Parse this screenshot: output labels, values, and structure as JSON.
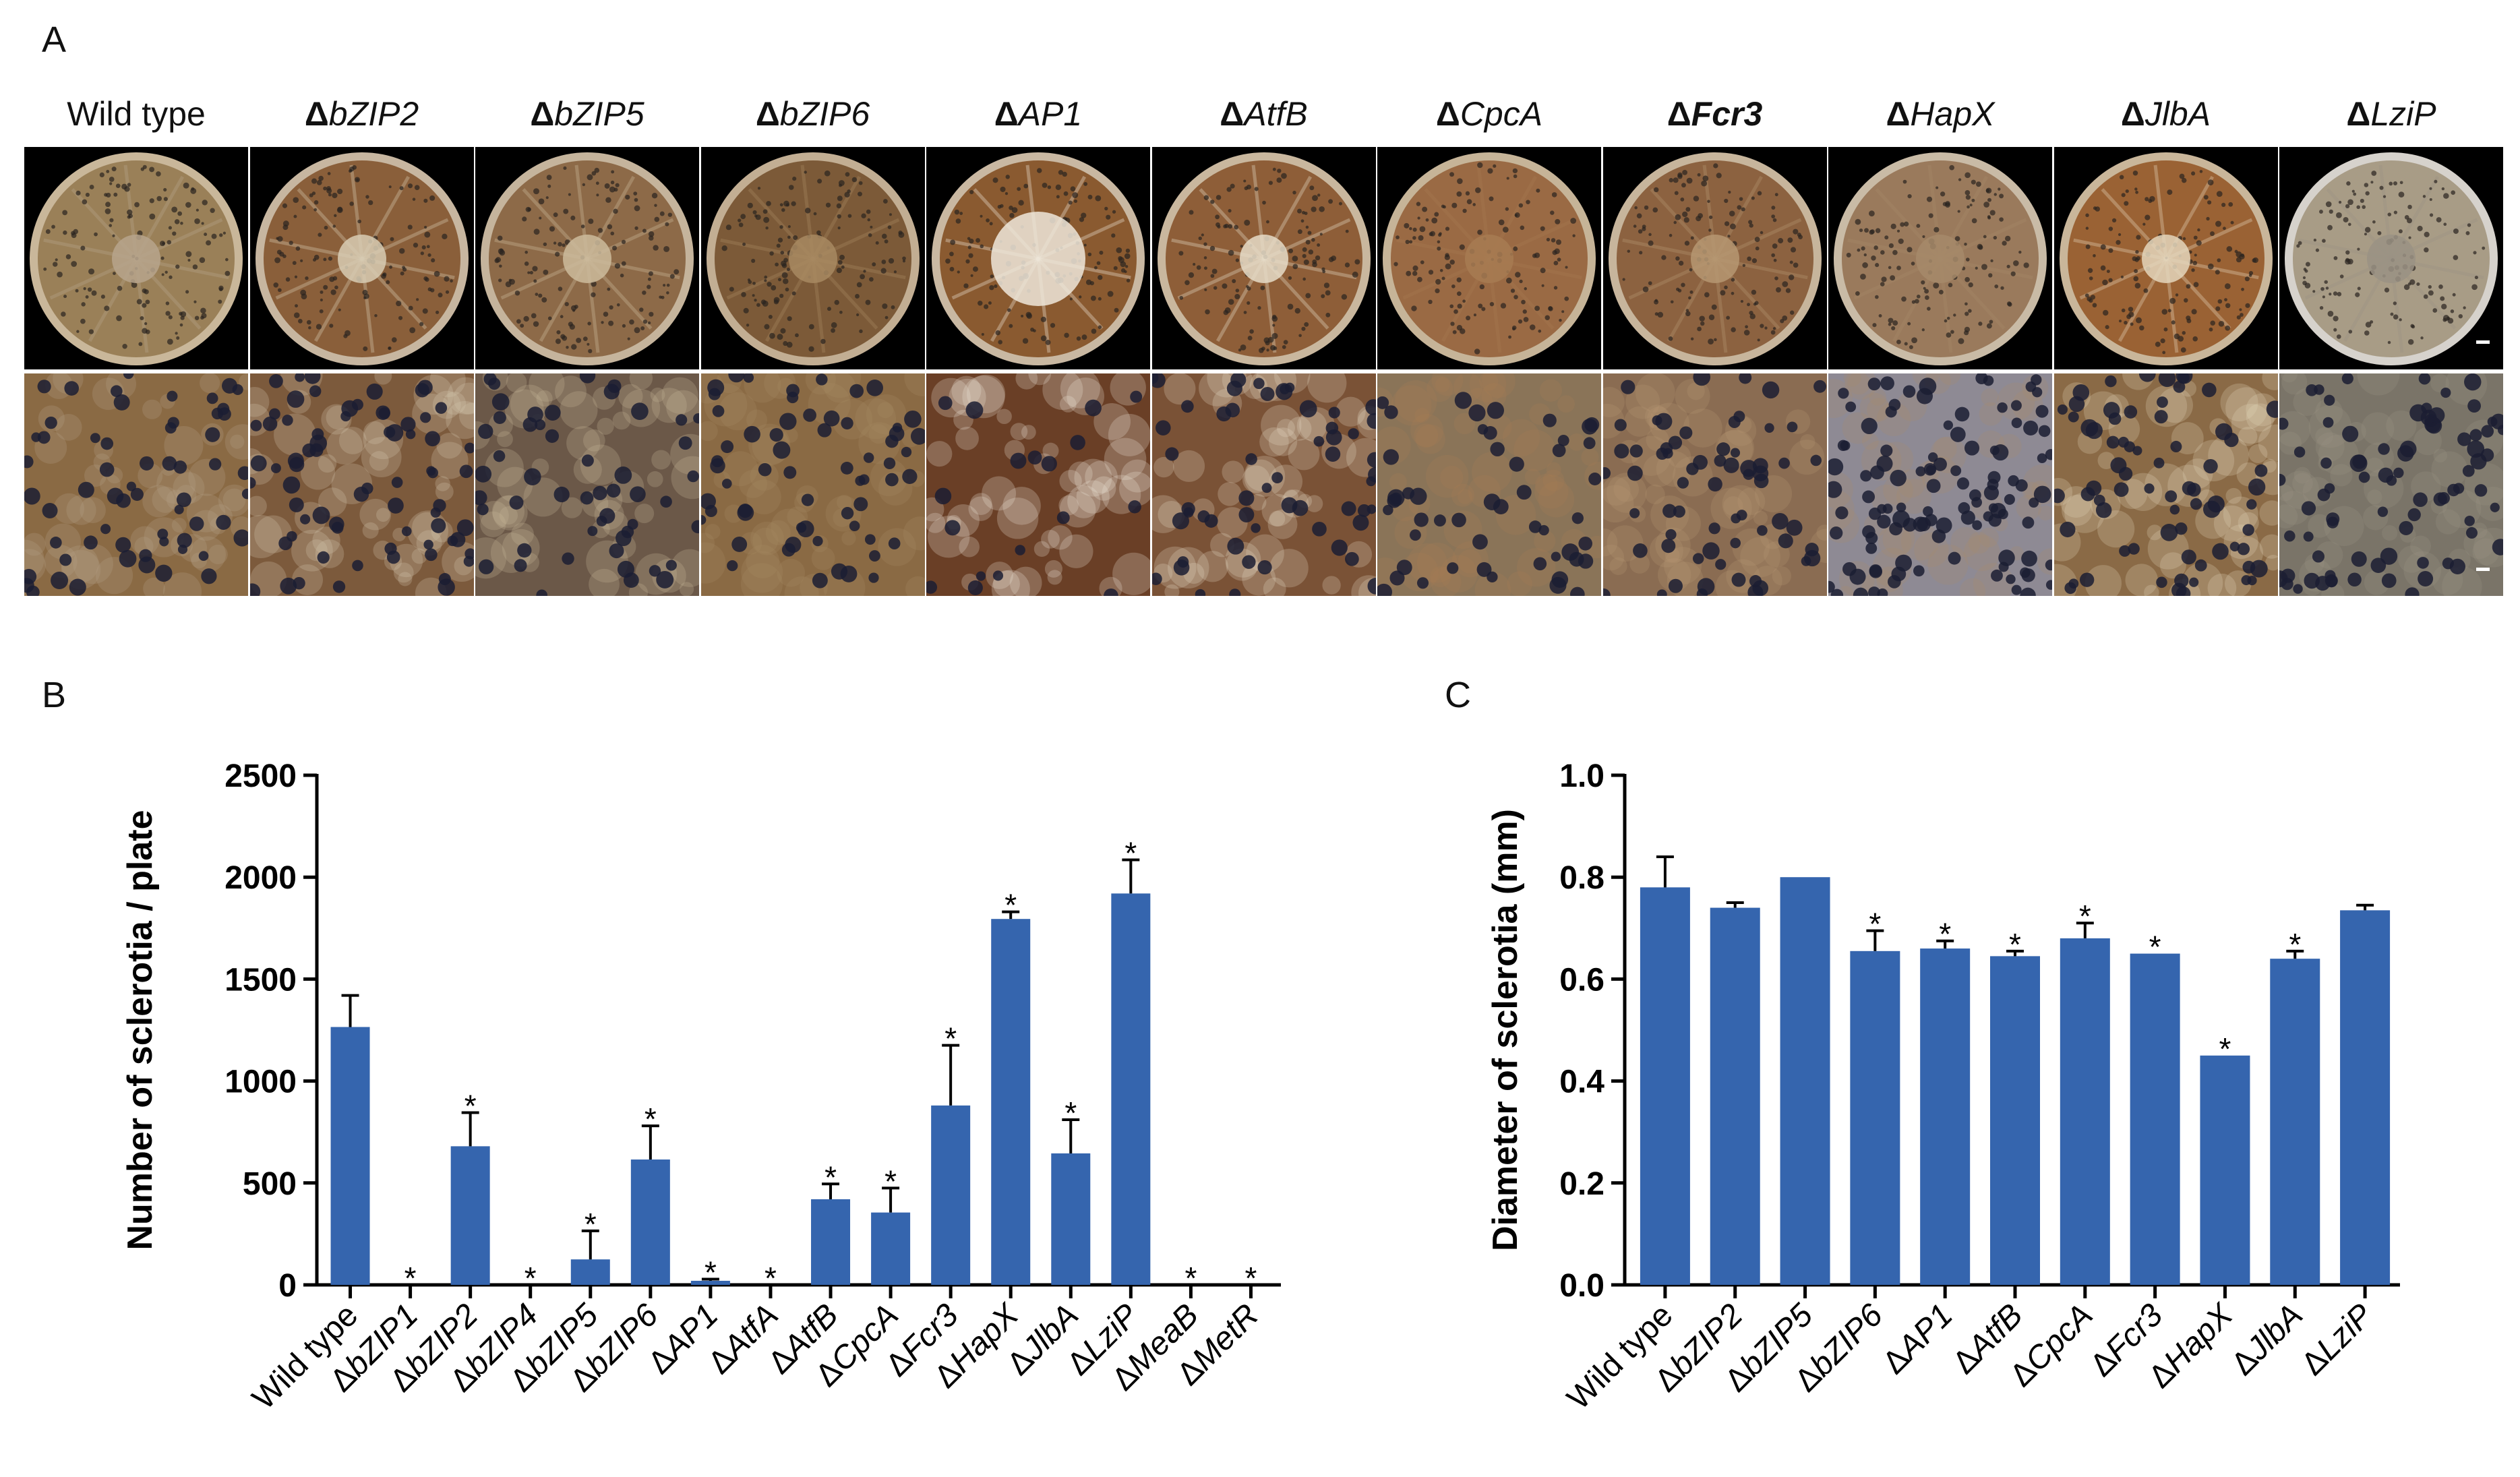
{
  "panels": {
    "a": "A",
    "b": "B",
    "c": "C"
  },
  "strains": [
    {
      "delta": "",
      "gene": "Wild type",
      "wt": true,
      "bold": false,
      "plate": "#9a8058",
      "ring": "#c9b79a",
      "close": "#8a6a44",
      "center": "#b7a58c"
    },
    {
      "delta": "Δ",
      "gene": "bZIP2",
      "wt": false,
      "bold": false,
      "plate": "#8a5f3a",
      "ring": "#c7b6a0",
      "close": "#7c5a3c",
      "center": "#d8ccb4"
    },
    {
      "delta": "Δ",
      "gene": "bZIP5",
      "wt": false,
      "bold": false,
      "plate": "#8d6a48",
      "ring": "#c5b49c",
      "close": "#6b5848",
      "center": "#cdbb9c"
    },
    {
      "delta": "Δ",
      "gene": "bZIP6",
      "wt": false,
      "bold": false,
      "plate": "#7c5a38",
      "ring": "#c2ae93",
      "close": "#8a6a44",
      "center": "#a88a62"
    },
    {
      "delta": "Δ",
      "gene": "AP1",
      "wt": false,
      "bold": false,
      "plate": "#8a5a30",
      "ring": "#c9b8a2",
      "close": "#6a3f26",
      "center": "#efe8da"
    },
    {
      "delta": "Δ",
      "gene": "AtfB",
      "wt": false,
      "bold": false,
      "plate": "#8e5e38",
      "ring": "#c9b79e",
      "close": "#7a5236",
      "center": "#e6dcc8"
    },
    {
      "delta": "Δ",
      "gene": "CpcA",
      "wt": false,
      "bold": false,
      "plate": "#9a6a44",
      "ring": "#c6b498",
      "close": "#8a7458",
      "center": "#a77b52"
    },
    {
      "delta": "Δ",
      "gene": "Fcr3",
      "wt": false,
      "bold": true,
      "plate": "#8c6240",
      "ring": "#c7b59c",
      "close": "#8a6c52",
      "center": "#b69872"
    },
    {
      "delta": "Δ",
      "gene": "HapX",
      "wt": false,
      "bold": false,
      "plate": "#9a7a5c",
      "ring": "#c9bba6",
      "close": "#8e8a94",
      "center": "#a68a6a"
    },
    {
      "delta": "Δ",
      "gene": "JlbA",
      "wt": false,
      "bold": false,
      "plate": "#9a6234",
      "ring": "#c9b69a",
      "close": "#8a6a46",
      "center": "#e4d6bc"
    },
    {
      "delta": "Δ",
      "gene": "LziP",
      "wt": false,
      "bold": false,
      "plate": "#a89c86",
      "ring": "#d6d2cc",
      "close": "#7a7468",
      "center": "#9a9284"
    }
  ],
  "chart_data": [
    {
      "type": "bar",
      "panel": "B",
      "ylabel": "Number of sclerotia / plate",
      "ylim": [
        0,
        2500
      ],
      "yticks": [
        "0",
        "500",
        "1000",
        "1500",
        "2000",
        "2500"
      ],
      "color": "#3565ae",
      "categories": [
        {
          "delta": "",
          "gene": "Wild type"
        },
        {
          "delta": "Δ",
          "gene": "bZIP1"
        },
        {
          "delta": "Δ",
          "gene": "bZIP2"
        },
        {
          "delta": "Δ",
          "gene": "bZIP4"
        },
        {
          "delta": "Δ",
          "gene": "bZIP5"
        },
        {
          "delta": "Δ",
          "gene": "bZIP6"
        },
        {
          "delta": "Δ",
          "gene": "AP1"
        },
        {
          "delta": "Δ",
          "gene": "AtfA"
        },
        {
          "delta": "Δ",
          "gene": "AtfB"
        },
        {
          "delta": "Δ",
          "gene": "CpcA"
        },
        {
          "delta": "Δ",
          "gene": "Fcr3"
        },
        {
          "delta": "Δ",
          "gene": "HapX"
        },
        {
          "delta": "Δ",
          "gene": "JlbA"
        },
        {
          "delta": "Δ",
          "gene": "LziP"
        },
        {
          "delta": "Δ",
          "gene": "MeaB"
        },
        {
          "delta": "Δ",
          "gene": "MetR"
        }
      ],
      "values": [
        1265,
        0,
        680,
        0,
        125,
        615,
        20,
        0,
        420,
        355,
        880,
        1795,
        645,
        1920,
        0,
        0
      ],
      "errors": [
        155,
        0,
        165,
        0,
        140,
        165,
        8,
        0,
        75,
        120,
        295,
        35,
        165,
        165,
        0,
        0
      ],
      "significance": [
        "",
        "*",
        "*",
        "*",
        "*",
        "*",
        "*",
        "*",
        "*",
        "*",
        "*",
        "*",
        "*",
        "*",
        "*",
        "*"
      ]
    },
    {
      "type": "bar",
      "panel": "C",
      "ylabel": "Diameter of sclerotia (mm)",
      "ylim": [
        0,
        1.0
      ],
      "yticks": [
        "0.0",
        "0.2",
        "0.4",
        "0.6",
        "0.8",
        "1.0"
      ],
      "color": "#3565ae",
      "categories": [
        {
          "delta": "",
          "gene": "Wild type"
        },
        {
          "delta": "Δ",
          "gene": "bZIP2"
        },
        {
          "delta": "Δ",
          "gene": "bZIP5"
        },
        {
          "delta": "Δ",
          "gene": "bZIP6"
        },
        {
          "delta": "Δ",
          "gene": "AP1"
        },
        {
          "delta": "Δ",
          "gene": "AtfB"
        },
        {
          "delta": "Δ",
          "gene": "CpcA"
        },
        {
          "delta": "Δ",
          "gene": "Fcr3"
        },
        {
          "delta": "Δ",
          "gene": "HapX"
        },
        {
          "delta": "Δ",
          "gene": "JlbA"
        },
        {
          "delta": "Δ",
          "gene": "LziP"
        }
      ],
      "values": [
        0.78,
        0.74,
        0.8,
        0.655,
        0.66,
        0.645,
        0.68,
        0.65,
        0.45,
        0.64,
        0.735
      ],
      "errors": [
        0.06,
        0.01,
        0,
        0.04,
        0.015,
        0.01,
        0.03,
        0,
        0,
        0.015,
        0.01
      ],
      "significance": [
        "",
        "",
        "",
        "*",
        "*",
        "*",
        "*",
        "*",
        "*",
        "*",
        ""
      ]
    }
  ]
}
